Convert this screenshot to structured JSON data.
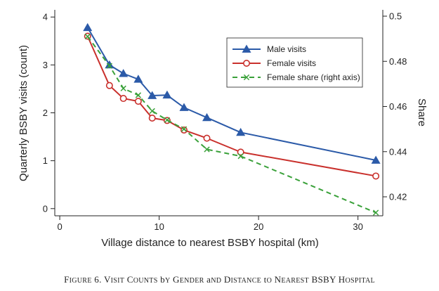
{
  "chart_data": {
    "type": "line",
    "x": [
      2.8,
      5,
      6.4,
      7.9,
      9.3,
      10.8,
      12.5,
      14.8,
      18.2,
      31.8
    ],
    "series": [
      {
        "name": "Male visits",
        "axis": "left",
        "color": "#2b5aa8",
        "marker": "triangle",
        "dash": "solid",
        "values": [
          3.78,
          3.0,
          2.82,
          2.7,
          2.36,
          2.37,
          2.11,
          1.9,
          1.59,
          1.01
        ]
      },
      {
        "name": "Female visits",
        "axis": "left",
        "color": "#c9302c",
        "marker": "circle",
        "dash": "solid",
        "values": [
          3.6,
          2.57,
          2.3,
          2.24,
          1.89,
          1.84,
          1.64,
          1.47,
          1.18,
          0.68
        ]
      },
      {
        "name": "Female share (right axis)",
        "axis": "right",
        "color": "#3aa13a",
        "marker": "x",
        "dash": "dashed",
        "values": [
          0.491,
          0.478,
          0.468,
          0.465,
          0.458,
          0.454,
          0.45,
          0.441,
          0.438,
          0.413
        ]
      }
    ],
    "xlabel": "Village distance to nearest BSBY hospital (km)",
    "ylabel": "Quarterly BSBY visits (count)",
    "ylabel_right": "Share",
    "xlim": [
      -0.5,
      32.5
    ],
    "ylim": [
      -0.15,
      4.15
    ],
    "ylim_right": [
      0.4116,
      0.5028
    ],
    "xticks": [
      0,
      10,
      20,
      30
    ],
    "yticks": [
      0,
      1,
      2,
      3,
      4
    ],
    "yticks_right": [
      0.42,
      0.44,
      0.46,
      0.48,
      0.5
    ],
    "legend_position": "top-right-inside",
    "grid": false
  },
  "caption": {
    "prefix": "Figure 6. ",
    "title": "Visit Counts by Gender and Distance to Nearest BSBY Hospital"
  }
}
